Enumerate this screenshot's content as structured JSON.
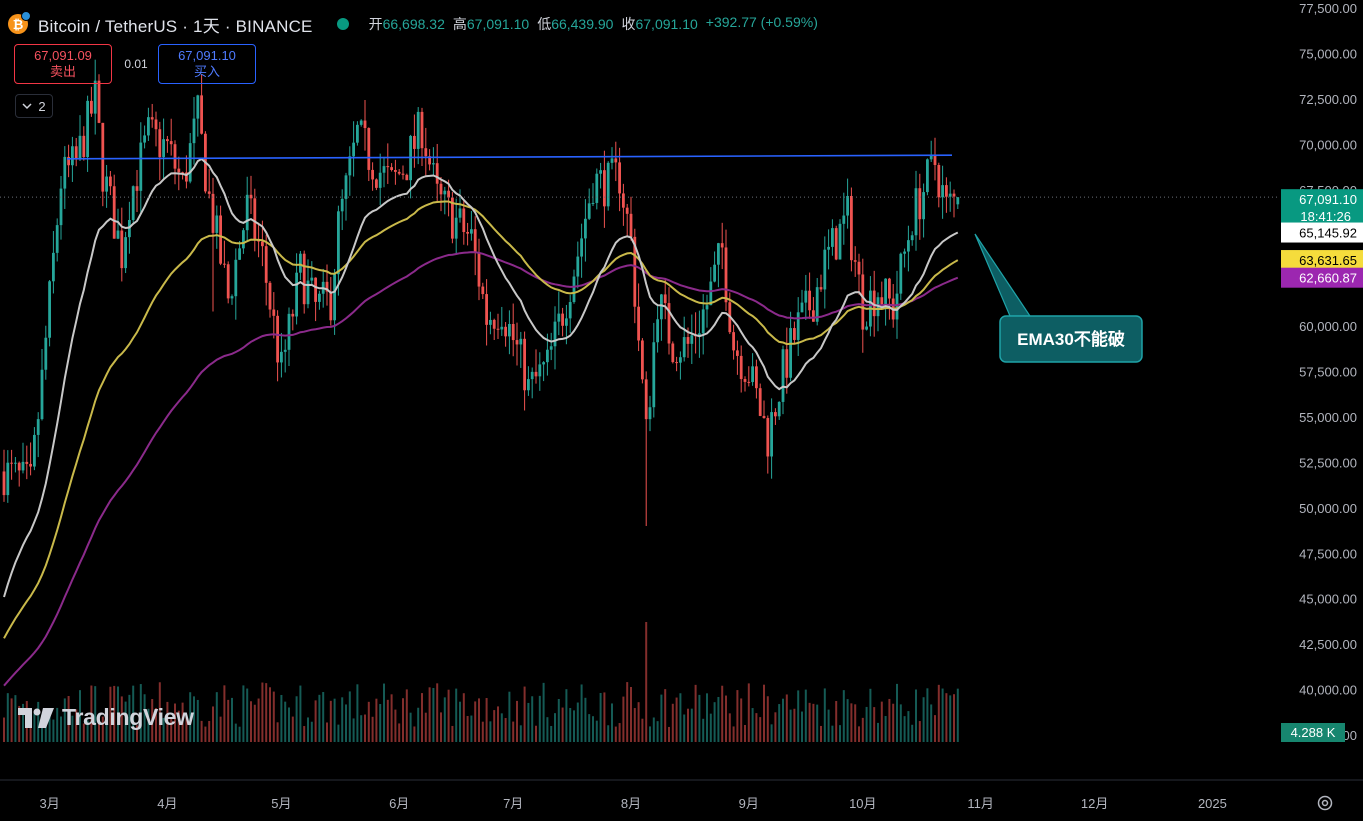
{
  "header": {
    "symbol_title": "Bitcoin / TetherUS · 1天 · BINANCE",
    "coin_glyph": "₿",
    "ohlc": [
      {
        "label": "开",
        "value": "66,698.32"
      },
      {
        "label": "高",
        "value": "67,091.10"
      },
      {
        "label": "低",
        "value": "66,439.90"
      },
      {
        "label": "收",
        "value": "67,091.10"
      }
    ],
    "change": "+392.77 (+0.59%)"
  },
  "trade": {
    "sell_price": "67,091.09",
    "sell_label": "卖出",
    "spread": "0.01",
    "buy_price": "67,091.10",
    "buy_label": "买入"
  },
  "indicators_toggle": "2",
  "watermark": "TradingView",
  "colors": {
    "up": "#26a69a",
    "down": "#ef5350",
    "ema_fast": "#c8c8c8",
    "ema_mid": "#c9b94a",
    "ema_slow": "#8b2a8b",
    "resistance": "#2962ff",
    "annotation_bg": "#0d5e63",
    "annotation_border": "#1fa3a8"
  },
  "chart_data": {
    "type": "candlestick",
    "x_ticks": [
      "3月",
      "4月",
      "5月",
      "6月",
      "7月",
      "8月",
      "9月",
      "10月",
      "11月",
      "12月",
      "2025"
    ],
    "y_ticks": [
      "77,500.00",
      "75,000.00",
      "72,500.00",
      "70,000.00",
      "67,500.00",
      "65,000.00",
      "62,500.00",
      "60,000.00",
      "57,500.00",
      "55,000.00",
      "52,500.00",
      "50,000.00",
      "47,500.00",
      "45,000.00",
      "42,500.00",
      "40,000.00",
      "37,500.00"
    ],
    "ylim": [
      37500,
      77500
    ],
    "price_labels": [
      {
        "value": "67,091.10",
        "sub": "18:41:26",
        "role": "last"
      },
      {
        "value": "65,145.92",
        "role": "ema_fast"
      },
      {
        "value": "63,631.65",
        "role": "ema_mid"
      },
      {
        "value": "62,660.87",
        "role": "ema_slow"
      }
    ],
    "volume_label": "4.288 K",
    "annotation": "EMA30不能破",
    "resistance_line": {
      "from": [
        "2月下旬",
        69200
      ],
      "to": [
        "10月下旬",
        69400
      ]
    },
    "anchors": [
      {
        "date": "2024-02-18",
        "close": 52000
      },
      {
        "date": "2024-02-25",
        "close": 51200
      },
      {
        "date": "2024-02-28",
        "close": 57000
      },
      {
        "date": "2024-03-04",
        "close": 68000
      },
      {
        "date": "2024-03-08",
        "close": 69000
      },
      {
        "date": "2024-03-13",
        "close": 72500
      },
      {
        "date": "2024-03-15",
        "close": 68500
      },
      {
        "date": "2024-03-20",
        "close": 64000
      },
      {
        "date": "2024-03-22",
        "close": 67000
      },
      {
        "date": "2024-03-27",
        "close": 70500
      },
      {
        "date": "2024-04-01",
        "close": 69800
      },
      {
        "date": "2024-04-05",
        "close": 67800
      },
      {
        "date": "2024-04-09",
        "close": 71500
      },
      {
        "date": "2024-04-12",
        "close": 67000
      },
      {
        "date": "2024-04-17",
        "close": 61500
      },
      {
        "date": "2024-04-22",
        "close": 66500
      },
      {
        "date": "2024-04-26",
        "close": 63800
      },
      {
        "date": "2024-05-01",
        "close": 57500
      },
      {
        "date": "2024-05-06",
        "close": 63000
      },
      {
        "date": "2024-05-10",
        "close": 61000
      },
      {
        "date": "2024-05-14",
        "close": 61500
      },
      {
        "date": "2024-05-16",
        "close": 65500
      },
      {
        "date": "2024-05-21",
        "close": 70500
      },
      {
        "date": "2024-05-25",
        "close": 69000
      },
      {
        "date": "2024-05-30",
        "close": 67800
      },
      {
        "date": "2024-06-03",
        "close": 69000
      },
      {
        "date": "2024-06-07",
        "close": 71000
      },
      {
        "date": "2024-06-11",
        "close": 67000
      },
      {
        "date": "2024-06-15",
        "close": 66000
      },
      {
        "date": "2024-06-20",
        "close": 64800
      },
      {
        "date": "2024-06-24",
        "close": 60500
      },
      {
        "date": "2024-06-28",
        "close": 61000
      },
      {
        "date": "2024-07-04",
        "close": 57500
      },
      {
        "date": "2024-07-05",
        "close": 56500
      },
      {
        "date": "2024-07-10",
        "close": 57800
      },
      {
        "date": "2024-07-14",
        "close": 60800
      },
      {
        "date": "2024-07-18",
        "close": 64000
      },
      {
        "date": "2024-07-22",
        "close": 68000
      },
      {
        "date": "2024-07-26",
        "close": 67800
      },
      {
        "date": "2024-07-29",
        "close": 68300
      },
      {
        "date": "2024-08-01",
        "close": 64600
      },
      {
        "date": "2024-08-05",
        "close": 54000
      },
      {
        "date": "2024-08-08",
        "close": 61500
      },
      {
        "date": "2024-08-12",
        "close": 59000
      },
      {
        "date": "2024-08-16",
        "close": 58900
      },
      {
        "date": "2024-08-21",
        "close": 61200
      },
      {
        "date": "2024-08-25",
        "close": 64200
      },
      {
        "date": "2024-08-28",
        "close": 59000
      },
      {
        "date": "2024-09-01",
        "close": 57500
      },
      {
        "date": "2024-09-06",
        "close": 53900
      },
      {
        "date": "2024-09-10",
        "close": 57500
      },
      {
        "date": "2024-09-14",
        "close": 60000
      },
      {
        "date": "2024-09-18",
        "close": 61500
      },
      {
        "date": "2024-09-21",
        "close": 63500
      },
      {
        "date": "2024-09-27",
        "close": 66000
      },
      {
        "date": "2024-10-01",
        "close": 61000
      },
      {
        "date": "2024-10-05",
        "close": 62000
      },
      {
        "date": "2024-10-09",
        "close": 61000
      },
      {
        "date": "2024-10-14",
        "close": 66000
      },
      {
        "date": "2024-10-17",
        "close": 67500
      },
      {
        "date": "2024-10-20",
        "close": 69000
      },
      {
        "date": "2024-10-23",
        "close": 66500
      },
      {
        "date": "2024-10-26",
        "close": 67091
      }
    ],
    "ema_fast_end": 65145.92,
    "ema_mid_end": 63631.65,
    "ema_slow_end": 62660.87,
    "grid": false,
    "legend": "none"
  }
}
